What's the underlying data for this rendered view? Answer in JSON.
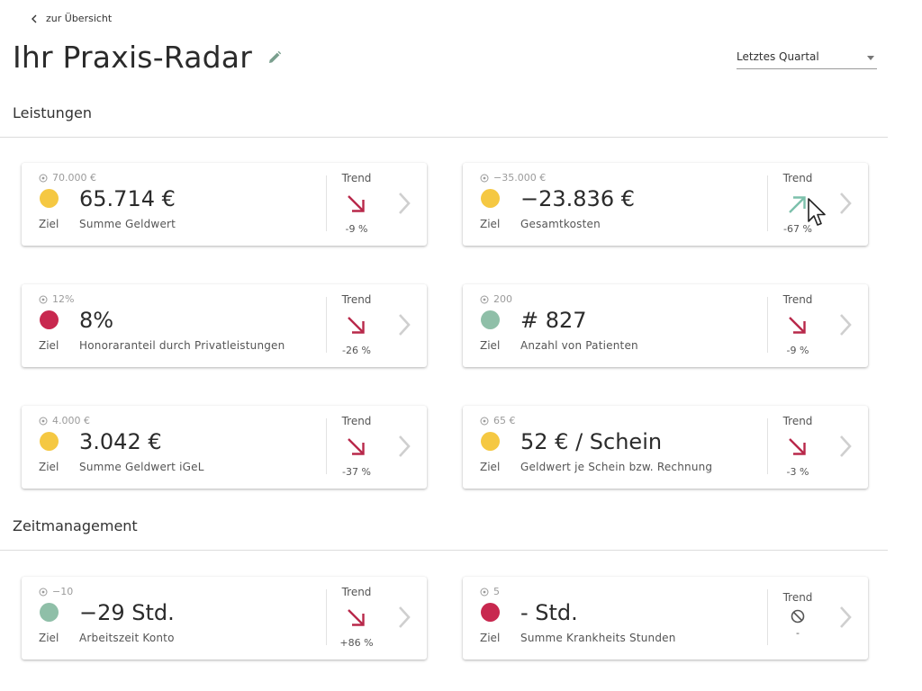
{
  "header": {
    "back_label": "zur Übersicht",
    "title": "Ihr Praxis-Radar",
    "period_select": "Letztes Quartal"
  },
  "sections": [
    {
      "title": "Leistungen"
    },
    {
      "title": "Zeitmanagement"
    }
  ],
  "cards": [
    {
      "target": "70.000 €",
      "status": "yellow",
      "value": "65.714 €",
      "ziel": "Ziel",
      "label": "Summe Geldwert",
      "trend_title": "Trend",
      "trend": "down",
      "trend_value": "-9 %"
    },
    {
      "target": "−35.000 €",
      "status": "yellow",
      "value": "−23.836 €",
      "ziel": "Ziel",
      "label": "Gesamtkosten",
      "trend_title": "Trend",
      "trend": "up",
      "trend_value": "-67 %"
    },
    {
      "target": "12%",
      "status": "red",
      "value": "8%",
      "ziel": "Ziel",
      "label": "Honoraranteil durch Privatleistungen",
      "trend_title": "Trend",
      "trend": "down",
      "trend_value": "-26 %"
    },
    {
      "target": "200",
      "status": "green",
      "value": "# 827",
      "ziel": "Ziel",
      "label": "Anzahl von Patienten",
      "trend_title": "Trend",
      "trend": "down",
      "trend_value": "-9 %"
    },
    {
      "target": "4.000 €",
      "status": "yellow",
      "value": "3.042 €",
      "ziel": "Ziel",
      "label": "Summe Geldwert iGeL",
      "trend_title": "Trend",
      "trend": "down",
      "trend_value": "-37 %"
    },
    {
      "target": "65 €",
      "status": "yellow",
      "value": "52 € / Schein",
      "ziel": "Ziel",
      "label": "Geldwert je Schein bzw. Rechnung",
      "trend_title": "Trend",
      "trend": "down",
      "trend_value": "-3 %"
    },
    {
      "target": "−10",
      "status": "green",
      "value": "−29 Std.",
      "ziel": "Ziel",
      "label": "Arbeitszeit Konto",
      "trend_title": "Trend",
      "trend": "down",
      "trend_value": "+86 %"
    },
    {
      "target": "5",
      "status": "red",
      "value": "- Std.",
      "ziel": "Ziel",
      "label": "Summe Krankheits Stunden",
      "trend_title": "Trend",
      "trend": "none",
      "trend_value": "-"
    }
  ],
  "colors": {
    "yellow": "#f5c842",
    "red": "#c8284f",
    "green": "#8fbfa8",
    "trend_down": "#b8284a",
    "trend_up": "#7cc0ab",
    "chevron": "#cfcfcf"
  },
  "icons": {
    "back": "chevron-left-icon",
    "edit": "pencil-icon",
    "target": "target-icon",
    "trend_down": "arrow-down-right-icon",
    "trend_up": "arrow-up-right-icon",
    "trend_none": "no-trend-icon",
    "detail": "chevron-right-icon",
    "cursor": "mouse-cursor-icon"
  }
}
